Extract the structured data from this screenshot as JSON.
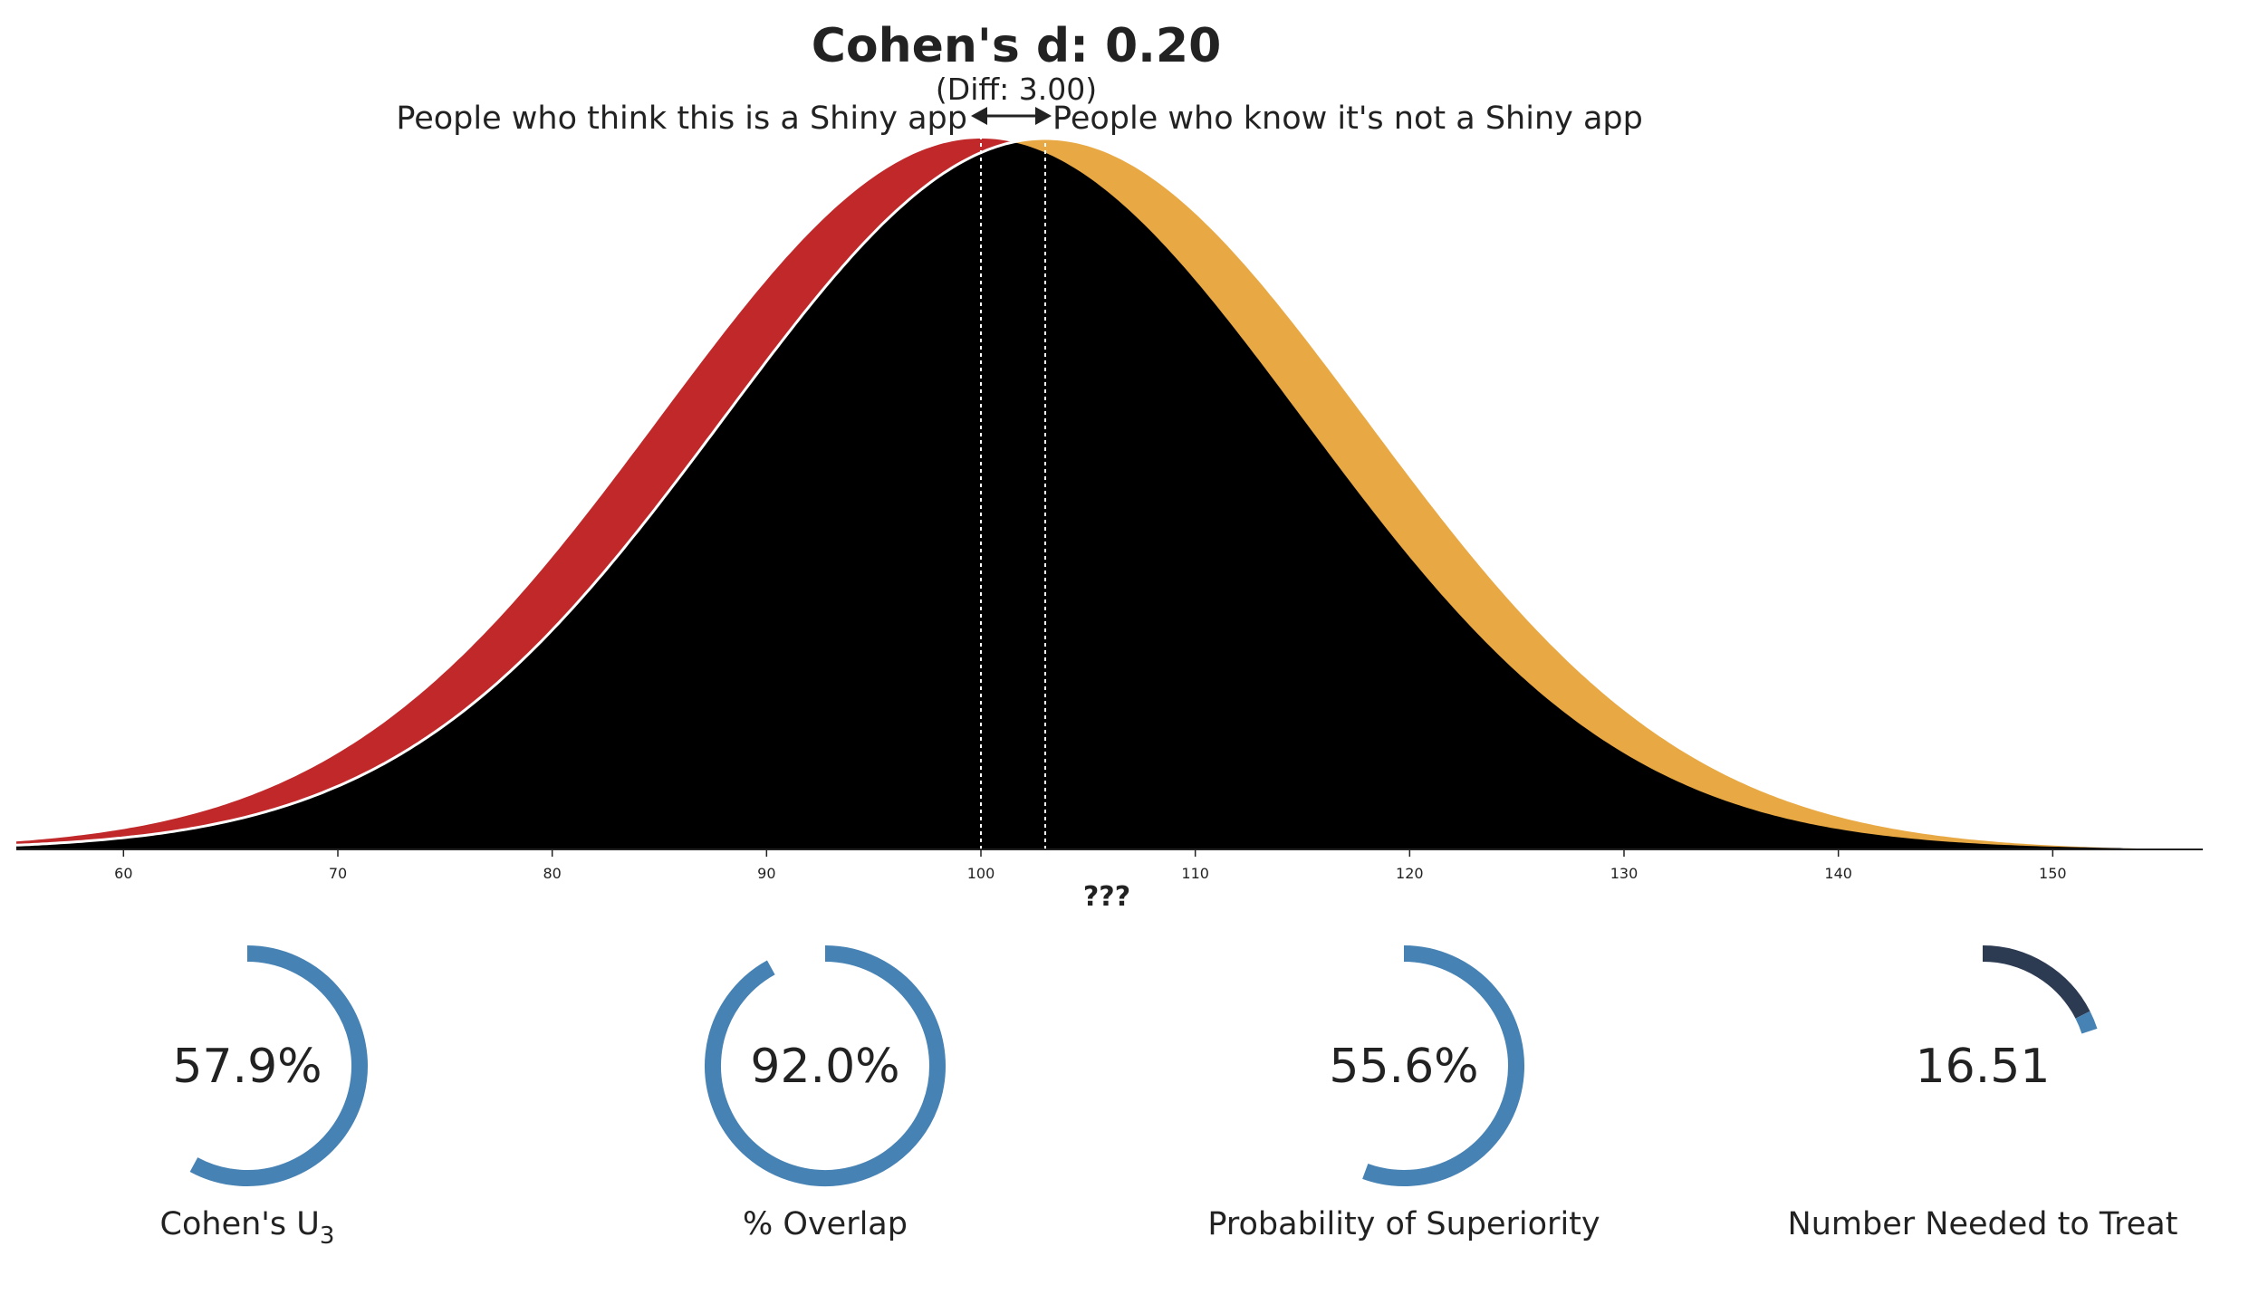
{
  "title": "Cohen's d: 0.20",
  "subtitle": "(Diff: 3.00)",
  "group_labels": {
    "left": "People who think this is a Shiny app",
    "right": "People who know it's not a Shiny app"
  },
  "colors": {
    "group1": "#c0282a",
    "group2": "#e8a843",
    "overlap": "#000000",
    "gauge_fill": "#4682b4",
    "gauge_dark": "#2c3a52"
  },
  "chart_data": {
    "type": "area",
    "title": "Cohen's d: 0.20",
    "xlabel": "???",
    "xlim": [
      55,
      157
    ],
    "x_ticks": [
      60,
      70,
      80,
      90,
      100,
      110,
      120,
      130,
      140,
      150
    ],
    "series": [
      {
        "name": "People who think this is a Shiny app",
        "mean": 100,
        "sd": 15
      },
      {
        "name": "People who know it's not a Shiny app",
        "mean": 103,
        "sd": 15
      }
    ],
    "mean_lines": [
      100,
      103
    ],
    "cohens_d": 0.2,
    "diff": 3.0
  },
  "gauges": [
    {
      "value_text": "57.9%",
      "fraction": 0.579,
      "label": "Cohen's U",
      "label_sub": "3"
    },
    {
      "value_text": "92.0%",
      "fraction": 0.92,
      "label": "% Overlap",
      "label_sub": ""
    },
    {
      "value_text": "55.6%",
      "fraction": 0.556,
      "label": "Probability of Superiority",
      "label_sub": ""
    },
    {
      "value_text": "16.51",
      "fraction": 0.2,
      "dark_fraction": 0.175,
      "label": "Number Needed to Treat",
      "label_sub": ""
    }
  ]
}
